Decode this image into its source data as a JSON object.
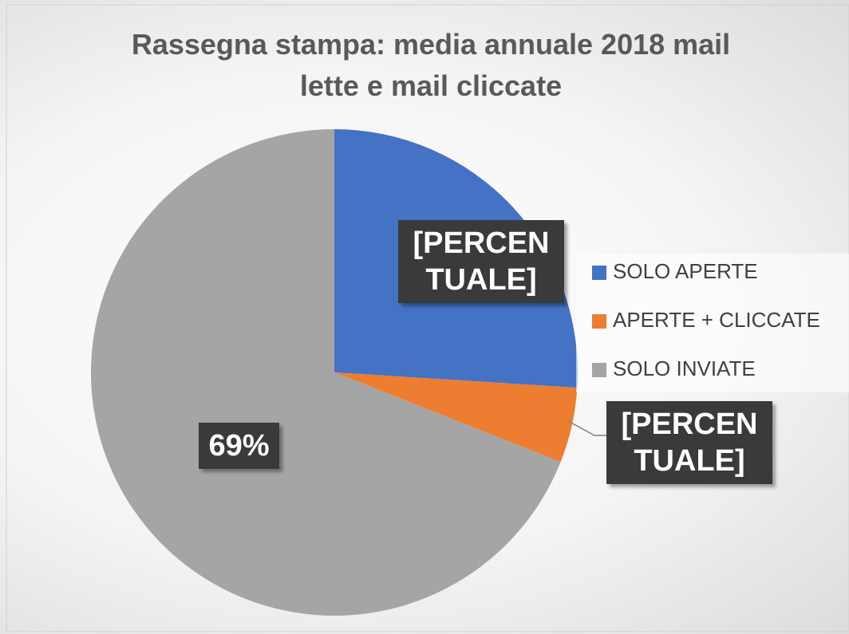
{
  "chart_data": {
    "type": "pie",
    "title": "Rassegna stampa: media annuale 2018 mail lette  e mail cliccate",
    "categories": [
      "SOLO APERTE",
      "APERTE + CLICCATE",
      "SOLO INVIATE"
    ],
    "values": [
      26,
      5,
      69
    ],
    "value_labels": [
      "[PERCENTUALE]",
      "[PERCENTUALE]",
      "69%"
    ],
    "colors": [
      "#4472c4",
      "#ed7d31",
      "#a5a5a5"
    ],
    "legend": "right"
  }
}
